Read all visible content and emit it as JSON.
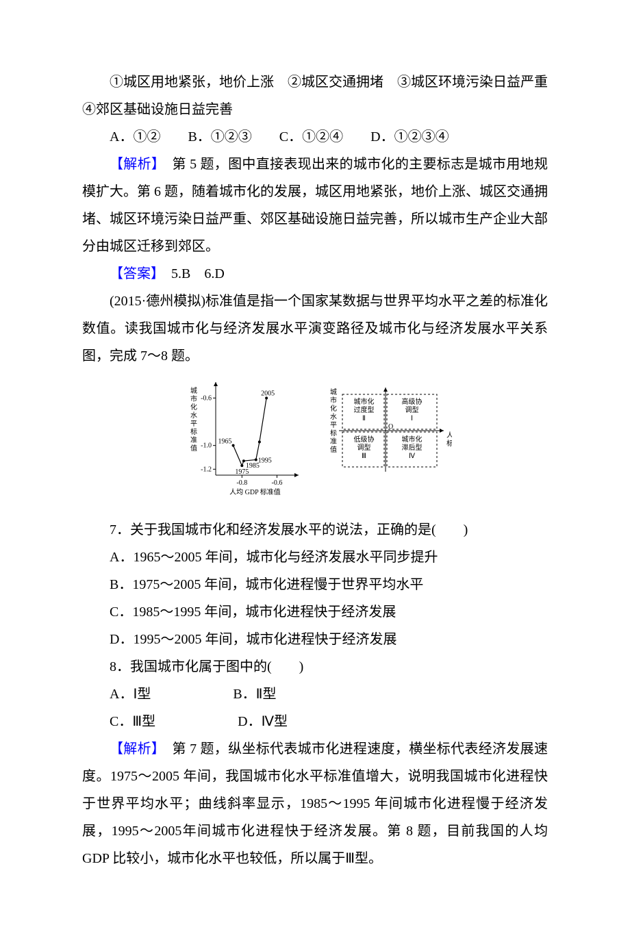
{
  "intro56": "①城区用地紧张，地价上涨　②城区交通拥堵　③城区环境污染日益严重　④郊区基础设施日益完善",
  "q56_options": "A．①②　　B．①②③　　C．①②④　　D．①②③④",
  "analysis_label": "【解析】",
  "answer_label": "【答案】",
  "analysis56": "　第 5 题，图中直接表现出来的城市化的主要标志是城市用地规模扩大。第 6 题，随着城市化的发展，城区用地紧张，地价上涨、城区交通拥堵、城区环境污染日益严重、郊区基础设施日益完善，所以城市生产企业大部分由城区迁移到郊区。",
  "answer56": "　5.B　6.D",
  "passage78": "(2015·德州模拟)标准值是指一个国家某数据与世界平均水平之差的标准化数值。读我国城市化与经济发展水平演变路径及城市化与经济发展水平关系图，完成 7～8 题。",
  "q7": {
    "stem": "7．关于我国城市化和经济发展水平的说法，正确的是(　　)",
    "A": "A．1965～2005 年间，城市化与经济发展水平同步提升",
    "B": "B．1975～2005 年间，城市化进程慢于世界平均水平",
    "C": "C．1985～1995 年间，城市化进程快于经济发展",
    "D": "D．1995～2005 年间，城市化进程快于经济发展"
  },
  "q8": {
    "stem": "8．我国城市化属于图中的(　　)",
    "A": "A．Ⅰ型",
    "B": "B．Ⅱ型",
    "C": "C．Ⅲ型",
    "D": "D．Ⅳ型"
  },
  "analysis78": "　第 7 题，纵坐标代表城市化进程速度，横坐标代表经济发展速度。1975～2005 年间，我国城市化水平标准值增大，说明我国城市化进程快于世界平均水平；曲线斜率显示，1985～1995 年间城市化进程慢于经济发展，1995～2005年间城市化进程快于经济发展。第 8 题，目前我国的人均 GDP 比较小，城市化水平也较低，所以属于Ⅲ型。",
  "chart": {
    "left": {
      "y_label": "城市化水平标准值",
      "x_label": "人均 GDP 标准值",
      "y_ticks": [
        -0.6,
        -1.0,
        -1.2
      ],
      "x_ticks": [
        -0.8,
        -0.6
      ],
      "x_range": [
        -0.95,
        -0.5
      ],
      "y_range": [
        -1.25,
        -0.5
      ],
      "points": [
        {
          "year": "1965",
          "x": -0.85,
          "y": -1.0
        },
        {
          "year": "1975",
          "x": -0.8,
          "y": -1.17
        },
        {
          "year": "1985",
          "x": -0.79,
          "y": -1.13
        },
        {
          "year": "1995",
          "x": -0.72,
          "y": -1.12
        },
        {
          "year": "",
          "x": -0.7,
          "y": -0.97
        },
        {
          "year": "2005",
          "x": -0.66,
          "y": -0.6
        }
      ]
    },
    "right": {
      "y_label": "城市化水平标准值",
      "x_label": "人均 GDP 标准值",
      "origin": "O",
      "quadrants": {
        "I": "高级协调型",
        "II": "城市化过度型",
        "III": "低级协调型",
        "IV": "城市化滞后型"
      }
    },
    "colors": {
      "axis": "#000000",
      "text": "#000000",
      "bg": "#ffffff"
    }
  }
}
